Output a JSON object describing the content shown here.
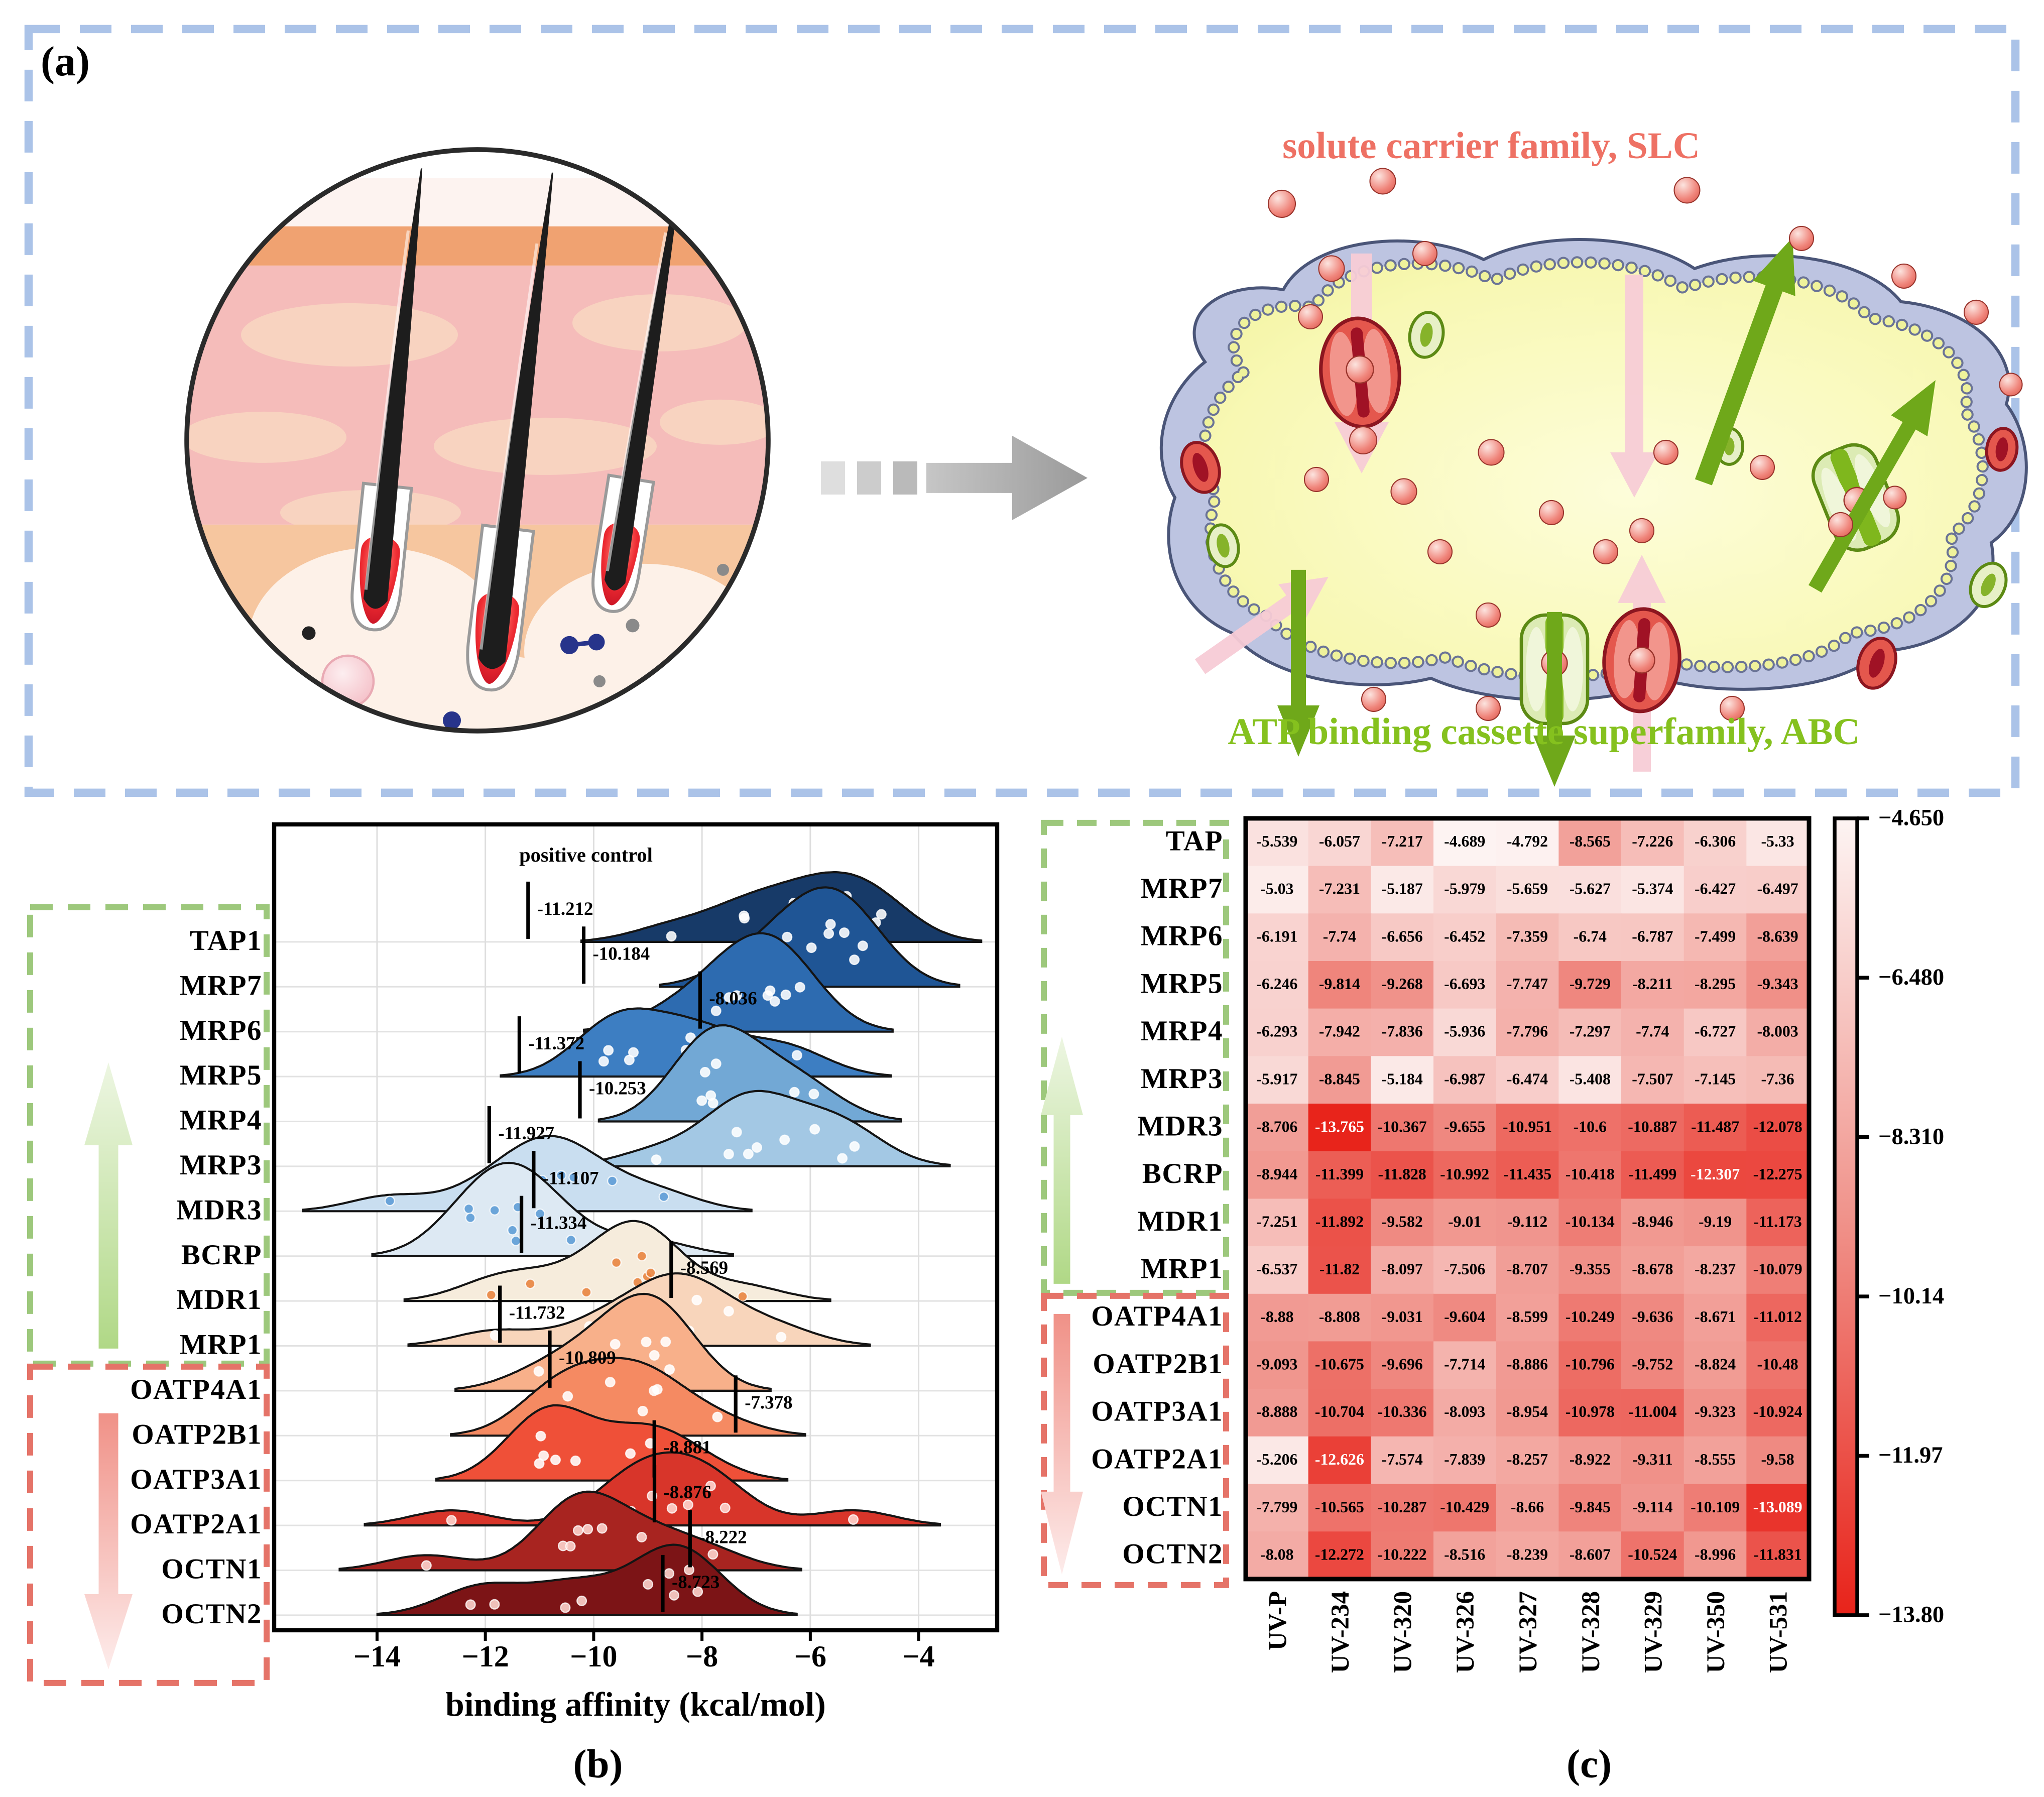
{
  "figure": {
    "panel_a_label": "(a)",
    "panel_b_label": "(b)",
    "panel_c_label": "(c)"
  },
  "panel_a": {
    "slc_title": "solute carrier family, SLC",
    "abc_title": "ATP binding cassette superfamily, ABC",
    "slc_color": "#ee7164",
    "abc_color": "#85c11e",
    "border_color": "#abc3e8",
    "icons": {
      "left": "skin-hair-follicle-illustration",
      "middle": "transition-arrow",
      "right": "cell-membrane-transporters-illustration"
    }
  },
  "panel_b": {
    "xlabel": "binding affinity (kcal/mol)",
    "positive_control_label": "positive control",
    "group_up_color": "#9dc87c",
    "group_down_color": "#e57368",
    "group_up": [
      "TAP1",
      "MRP7",
      "MRP6",
      "MRP5",
      "MRP4",
      "MRP3",
      "MDR3",
      "BCRP",
      "MDR1",
      "MRP1"
    ],
    "group_down": [
      "OATP4A1",
      "OATP2B1",
      "OATP3A1",
      "OATP2A1",
      "OCTN1",
      "OCTN2"
    ]
  },
  "panel_c": {
    "colorbar_ticks": [
      "−4.650",
      "−6.480",
      "−8.310",
      "−10.14",
      "−11.97",
      "−13.80"
    ],
    "vmin": -13.8,
    "vmax": -4.65
  },
  "chart_data": [
    {
      "type": "area",
      "subtype": "ridgeline",
      "title": "",
      "xlabel": "binding affinity (kcal/mol)",
      "ylabel": "",
      "xlim": [
        -15.9,
        -2.55
      ],
      "x_ticks": [
        -14,
        -12,
        -10,
        -8,
        -6,
        -4
      ],
      "grid": true,
      "annotation_label": "positive control",
      "series": [
        {
          "name": "TAP1",
          "positive_control": -11.212,
          "color": "#173a68",
          "dot": "#ffffff",
          "values": [
            -5.539,
            -6.057,
            -7.217,
            -4.689,
            -4.792,
            -8.565,
            -7.226,
            -6.306,
            -5.33
          ]
        },
        {
          "name": "MRP7",
          "positive_control": -10.184,
          "color": "#1f5595",
          "dot": "#ffffff",
          "values": [
            -5.03,
            -7.231,
            -5.187,
            -5.979,
            -5.659,
            -5.627,
            -5.374,
            -6.427,
            -6.497
          ]
        },
        {
          "name": "MRP6",
          "positive_control": -8.036,
          "color": "#2d6bb0",
          "dot": "#ffffff",
          "values": [
            -6.191,
            -7.74,
            -6.656,
            -6.452,
            -7.359,
            -6.74,
            -6.787,
            -7.499,
            -8.639
          ]
        },
        {
          "name": "MRP5",
          "positive_control": -11.372,
          "color": "#3d7ec2",
          "dot": "#ffffff",
          "values": [
            -6.246,
            -9.814,
            -9.268,
            -6.693,
            -7.747,
            -9.729,
            -8.211,
            -8.295,
            -9.343
          ]
        },
        {
          "name": "MRP4",
          "positive_control": -10.253,
          "color": "#72a8d5",
          "dot": "#ffffff",
          "values": [
            -6.293,
            -7.942,
            -7.836,
            -5.936,
            -7.796,
            -7.297,
            -7.74,
            -6.727,
            -8.003
          ]
        },
        {
          "name": "MRP3",
          "positive_control": -11.927,
          "color": "#a3c8e4",
          "dot": "#ffffff",
          "values": [
            -5.917,
            -8.845,
            -5.184,
            -6.987,
            -6.474,
            -5.408,
            -7.507,
            -7.145,
            -7.36
          ]
        },
        {
          "name": "MDR3",
          "positive_control": -11.107,
          "color": "#c9def0",
          "dot": "#5b9bd5",
          "values": [
            -8.706,
            -13.765,
            -10.367,
            -9.655,
            -10.951,
            -10.6,
            -10.887,
            -11.487,
            -12.078
          ]
        },
        {
          "name": "BCRP",
          "positive_control": -11.334,
          "color": "#dde9f3",
          "dot": "#5b9bd5",
          "values": [
            -8.944,
            -11.399,
            -11.828,
            -10.992,
            -11.435,
            -10.418,
            -11.499,
            -12.307,
            -12.275
          ]
        },
        {
          "name": "MDR1",
          "positive_control": -8.569,
          "color": "#f6ecdc",
          "dot": "#e8823c",
          "values": [
            -7.251,
            -11.892,
            -9.582,
            -9.01,
            -9.112,
            -10.134,
            -8.946,
            -9.19,
            -11.173
          ]
        },
        {
          "name": "MRP1",
          "positive_control": -11.732,
          "color": "#f8d5bb",
          "dot": "#ffffff",
          "values": [
            -6.537,
            -11.82,
            -8.097,
            -7.506,
            -8.707,
            -9.355,
            -8.678,
            -8.237,
            -10.079
          ]
        },
        {
          "name": "OATP4A1",
          "positive_control": -10.809,
          "color": "#f8b08a",
          "dot": "#ffffff",
          "values": [
            -8.88,
            -8.808,
            -9.031,
            -9.604,
            -8.599,
            -10.249,
            -9.636,
            -8.671,
            -11.012
          ]
        },
        {
          "name": "OATP2B1",
          "positive_control": -7.378,
          "color": "#f58a62",
          "dot": "#ffffff",
          "values": [
            -9.093,
            -10.675,
            -9.696,
            -7.714,
            -8.886,
            -10.796,
            -9.752,
            -8.824,
            -10.48
          ]
        },
        {
          "name": "OATP3A1",
          "positive_control": -8.881,
          "color": "#ef5038",
          "dot": "#ffffff",
          "values": [
            -8.888,
            -10.704,
            -10.336,
            -8.093,
            -8.954,
            -10.978,
            -11.004,
            -9.323,
            -10.924
          ]
        },
        {
          "name": "OATP2A1",
          "positive_control": -8.876,
          "color": "#d8352a",
          "dot": "#ffd8d2",
          "values": [
            -5.206,
            -12.626,
            -7.574,
            -7.839,
            -8.257,
            -8.922,
            -9.311,
            -8.555,
            -9.58
          ]
        },
        {
          "name": "OCTN1",
          "positive_control": -8.222,
          "color": "#a82420",
          "dot": "#ffd8d2",
          "values": [
            -7.799,
            -10.565,
            -10.287,
            -10.429,
            -8.66,
            -9.845,
            -9.114,
            -10.109,
            -13.089
          ]
        },
        {
          "name": "OCTN2",
          "positive_control": -8.723,
          "color": "#7c1416",
          "dot": "#ffd8d2",
          "values": [
            -8.08,
            -12.272,
            -10.222,
            -8.516,
            -8.239,
            -8.607,
            -10.524,
            -8.996,
            -11.831
          ]
        }
      ]
    },
    {
      "type": "heatmap",
      "rows": [
        "TAP",
        "MRP7",
        "MRP6",
        "MRP5",
        "MRP4",
        "MRP3",
        "MDR3",
        "BCRP",
        "MDR1",
        "MRP1",
        "OATP4A1",
        "OATP2B1",
        "OATP3A1",
        "OATP2A1",
        "OCTN1",
        "OCTN2"
      ],
      "columns": [
        "UV-P",
        "UV-234",
        "UV-320",
        "UV-326",
        "UV-327",
        "UV-328",
        "UV-329",
        "UV-350",
        "UV-531"
      ],
      "values": [
        [
          -5.539,
          -6.057,
          -7.217,
          -4.689,
          -4.792,
          -8.565,
          -7.226,
          -6.306,
          -5.33
        ],
        [
          -5.03,
          -7.231,
          -5.187,
          -5.979,
          -5.659,
          -5.627,
          -5.374,
          -6.427,
          -6.497
        ],
        [
          -6.191,
          -7.74,
          -6.656,
          -6.452,
          -7.359,
          -6.74,
          -6.787,
          -7.499,
          -8.639
        ],
        [
          -6.246,
          -9.814,
          -9.268,
          -6.693,
          -7.747,
          -9.729,
          -8.211,
          -8.295,
          -9.343
        ],
        [
          -6.293,
          -7.942,
          -7.836,
          -5.936,
          -7.796,
          -7.297,
          -7.74,
          -6.727,
          -8.003
        ],
        [
          -5.917,
          -8.845,
          -5.184,
          -6.987,
          -6.474,
          -5.408,
          -7.507,
          -7.145,
          -7.36
        ],
        [
          -8.706,
          -13.765,
          -10.367,
          -9.655,
          -10.951,
          -10.6,
          -10.887,
          -11.487,
          -12.078
        ],
        [
          -8.944,
          -11.399,
          -11.828,
          -10.992,
          -11.435,
          -10.418,
          -11.499,
          -12.307,
          -12.275
        ],
        [
          -7.251,
          -11.892,
          -9.582,
          -9.01,
          -9.112,
          -10.134,
          -8.946,
          -9.19,
          -11.173
        ],
        [
          -6.537,
          -11.82,
          -8.097,
          -7.506,
          -8.707,
          -9.355,
          -8.678,
          -8.237,
          -10.079
        ],
        [
          -8.88,
          -8.808,
          -9.031,
          -9.604,
          -8.599,
          -10.249,
          -9.636,
          -8.671,
          -11.012
        ],
        [
          -9.093,
          -10.675,
          -9.696,
          -7.714,
          -8.886,
          -10.796,
          -9.752,
          -8.824,
          -10.48
        ],
        [
          -8.888,
          -10.704,
          -10.336,
          -8.093,
          -8.954,
          -10.978,
          -11.004,
          -9.323,
          -10.924
        ],
        [
          -5.206,
          -12.626,
          -7.574,
          -7.839,
          -8.257,
          -8.922,
          -9.311,
          -8.555,
          -9.58
        ],
        [
          -7.799,
          -10.565,
          -10.287,
          -10.429,
          -8.66,
          -9.845,
          -9.114,
          -10.109,
          -13.089
        ],
        [
          -8.08,
          -12.272,
          -10.222,
          -8.516,
          -8.239,
          -8.607,
          -10.524,
          -8.996,
          -11.831
        ]
      ],
      "vmin": -13.8,
      "vmax": -4.65,
      "colorbar_ticks": [
        "−4.650",
        "−6.480",
        "−8.310",
        "−10.14",
        "−11.97",
        "−13.80"
      ],
      "colormap": [
        "#fdf4f3",
        "#f0938b",
        "#e8231a"
      ],
      "white_text_threshold": -12.3,
      "legend_position": "right"
    }
  ]
}
